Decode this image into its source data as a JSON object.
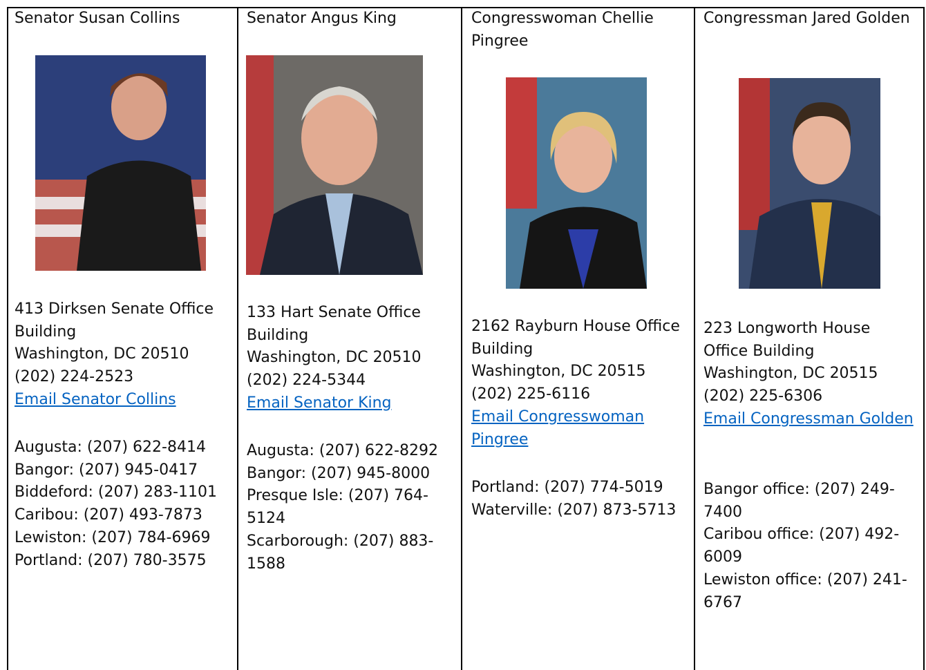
{
  "columns": [
    {
      "title": "Senator Susan Collins",
      "street": "413 Dirksen Senate Office Building",
      "city": "Washington, DC 20510",
      "phone": "(202) 224-2523",
      "email": "Email Senator Collins",
      "offices": [
        "Augusta: (207) 622-8414",
        "Bangor: (207) 945-0417",
        "Biddeford: (207) 283-1101",
        "Caribou: (207) 493-7873",
        "Lewiston: (207) 784-6969",
        "Portland: (207) 780-3575"
      ]
    },
    {
      "title": "Senator Angus King",
      "street": "133 Hart Senate Office Building",
      "city": "Washington, DC 20510",
      "phone": "(202) 224-5344",
      "email": "Email Senator King",
      "offices": [
        "Augusta: (207) 622-8292",
        "Bangor: (207) 945-8000",
        "Presque Isle: (207) 764-5124",
        "Scarborough: (207) 883-1588"
      ]
    },
    {
      "title": "Congresswoman Chellie Pingree",
      "street": "2162 Rayburn House Office Building",
      "city": "Washington, DC 20515",
      "phone": "(202) 225-6116",
      "email": "Email Congresswoman Pingree",
      "offices": [
        "Portland: (207) 774-5019",
        "Waterville: (207) 873-5713"
      ]
    },
    {
      "title": "Congressman Jared Golden",
      "street": "223 Longworth House Office Building",
      "city": "Washington, DC 20515",
      "phone": "(202) 225-6306",
      "email": "Email Congressman Golden",
      "offices": [
        "Bangor office: (207) 249-7400",
        "Caribou office: (207) 492-6009",
        "Lewiston office: (207) 241-6767"
      ]
    }
  ]
}
